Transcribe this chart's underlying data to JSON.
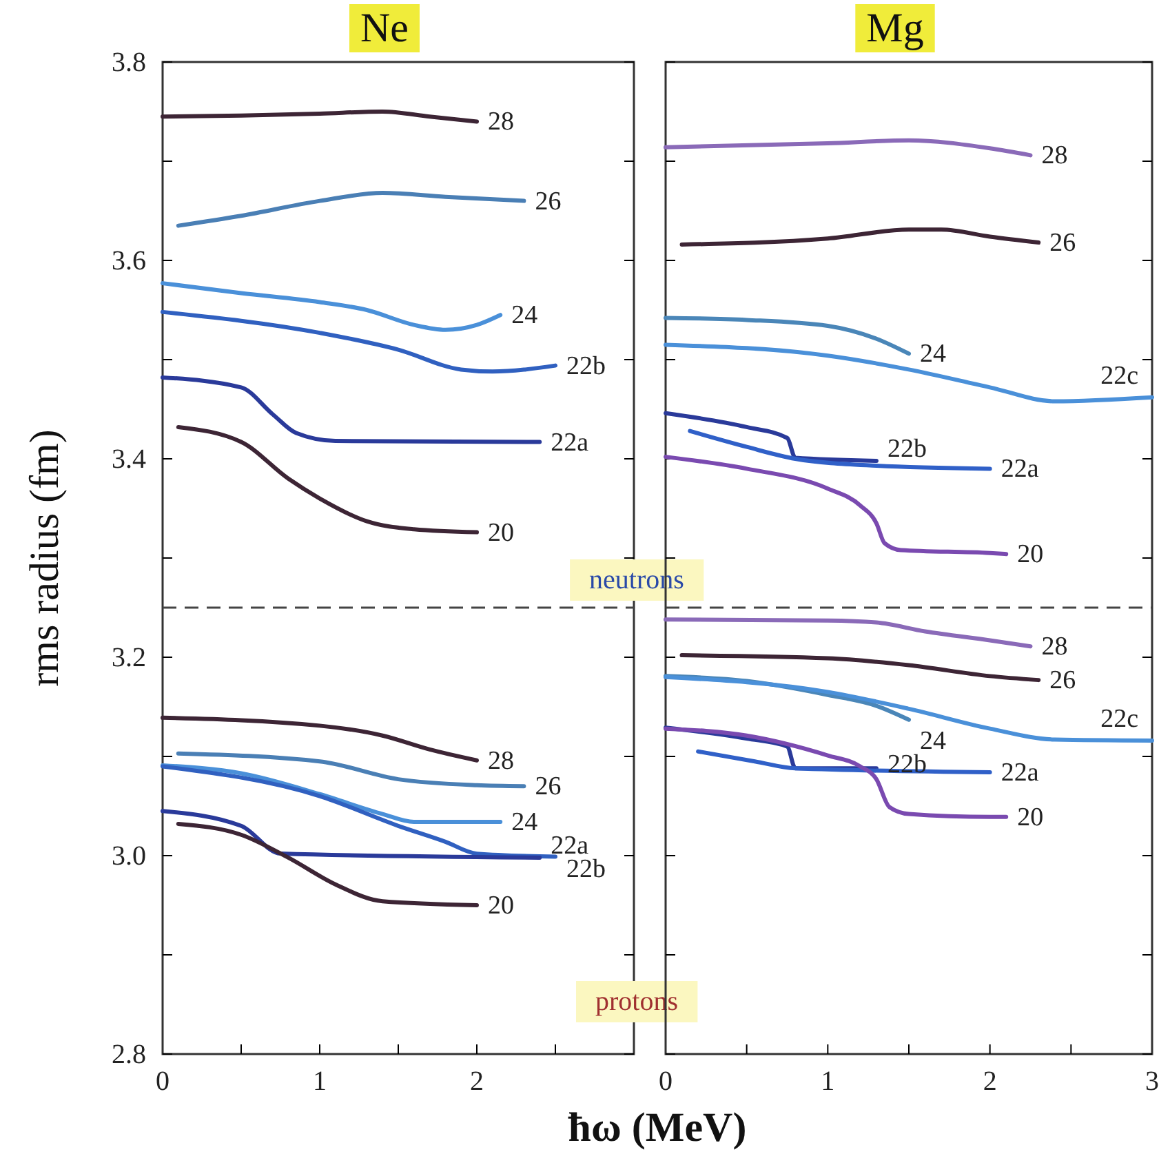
{
  "chart_data": [
    {
      "type": "line",
      "title": "Ne",
      "xlabel": "ħω  (MeV)",
      "ylabel": "rms radius  (fm)",
      "xlim": [
        0,
        3
      ],
      "ylim": [
        2.8,
        3.8
      ],
      "xticks": [
        0,
        {
          "value": 0.5,
          "label": null
        },
        1,
        {
          "value": 1.5,
          "label": null
        },
        2,
        {
          "value": 2.5,
          "label": null
        }
      ],
      "yticks": [
        2.8,
        {
          "value": 2.9,
          "label": null
        },
        {
          "value": 3.0,
          "label": "3.0"
        },
        {
          "value": 3.1,
          "label": null
        },
        3.2,
        {
          "value": 3.3,
          "label": null
        },
        3.4,
        {
          "value": 3.5,
          "label": null
        },
        3.6,
        {
          "value": 3.7,
          "label": null
        },
        3.8
      ],
      "ref_lines": [
        {
          "axis": "y",
          "value": 3.25,
          "line_style": "dashed",
          "color": "#444444"
        }
      ],
      "annotations": [
        "neutrons",
        "protons"
      ],
      "line_style": "solid",
      "grid": false,
      "series": [
        {
          "name": "28",
          "color": "#3d2535",
          "x": [
            0,
            0.5,
            1,
            1.4,
            1.7,
            2
          ],
          "values": [
            3.745,
            3.746,
            3.748,
            3.75,
            3.745,
            3.74
          ]
        },
        {
          "name": "26",
          "color": "#4a7fb5",
          "x": [
            0.1,
            0.5,
            1,
            1.4,
            1.8,
            2.3
          ],
          "values": [
            3.635,
            3.645,
            3.66,
            3.668,
            3.664,
            3.66
          ]
        },
        {
          "name": "24",
          "color": "#4a90d9",
          "x": [
            0,
            0.5,
            1,
            1.3,
            1.6,
            1.8,
            2.0,
            2.15
          ],
          "values": [
            3.577,
            3.567,
            3.558,
            3.55,
            3.535,
            3.53,
            3.535,
            3.545
          ]
        },
        {
          "name": "22b",
          "color": "#3060c0",
          "x": [
            0,
            1,
            1.5,
            1.9,
            2.1,
            2.5
          ],
          "values": [
            3.548,
            3.527,
            3.51,
            3.49,
            3.488,
            3.494
          ]
        },
        {
          "name": "22a",
          "color": "#2a3a9a",
          "x": [
            0,
            0.5,
            0.7,
            0.85,
            1.1,
            2.4
          ],
          "values": [
            3.482,
            3.472,
            3.445,
            3.426,
            3.418,
            3.417
          ]
        },
        {
          "name": "20",
          "color": "#3d2535",
          "x": [
            0.1,
            0.5,
            0.8,
            1.0,
            1.3,
            1.6,
            2.0
          ],
          "values": [
            3.432,
            3.417,
            3.38,
            3.36,
            3.337,
            3.329,
            3.326
          ]
        },
        {
          "name": "28",
          "color": "#3d2535",
          "x": [
            0,
            1,
            1.4,
            1.7,
            2.0
          ],
          "values": [
            3.139,
            3.131,
            3.121,
            3.107,
            3.096
          ]
        },
        {
          "name": "26",
          "color": "#4a7fb5",
          "x": [
            0.1,
            1,
            1.5,
            2.0,
            2.3
          ],
          "values": [
            3.103,
            3.095,
            3.077,
            3.071,
            3.07
          ]
        },
        {
          "name": "24",
          "color": "#4a90d9",
          "x": [
            0,
            0.5,
            1,
            1.4,
            1.6,
            2.15
          ],
          "values": [
            3.091,
            3.083,
            3.062,
            3.042,
            3.034,
            3.034
          ]
        },
        {
          "name": "22b",
          "color": "#3060c0",
          "x": [
            0,
            1,
            1.5,
            1.8,
            2.0,
            2.5
          ],
          "values": [
            3.09,
            3.06,
            3.03,
            3.014,
            3.002,
            2.999
          ]
        },
        {
          "name": "22a",
          "color": "#2a3a9a",
          "x": [
            0,
            0.5,
            0.75,
            2.4
          ],
          "values": [
            3.045,
            3.03,
            3.002,
            2.998
          ]
        },
        {
          "name": "20",
          "color": "#3d2535",
          "x": [
            0.1,
            0.5,
            0.8,
            1.1,
            1.4,
            2.0
          ],
          "values": [
            3.032,
            3.021,
            2.998,
            2.971,
            2.954,
            2.95
          ]
        }
      ]
    },
    {
      "type": "line",
      "title": "Mg",
      "xlim": [
        0,
        3
      ],
      "ylim": [
        2.8,
        3.8
      ],
      "tick_labels": "x",
      "xticks": [
        0,
        {
          "value": 0.5,
          "label": null
        },
        1,
        {
          "value": 1.5,
          "label": null
        },
        2,
        {
          "value": 2.5,
          "label": null
        },
        3
      ],
      "yticks": [
        {
          "value": 2.8,
          "label": null
        },
        {
          "value": 2.9,
          "label": null
        },
        {
          "value": 3.0,
          "label": null
        },
        {
          "value": 3.1,
          "label": null
        },
        {
          "value": 3.2,
          "label": null
        },
        {
          "value": 3.3,
          "label": null
        },
        {
          "value": 3.4,
          "label": null
        },
        {
          "value": 3.5,
          "label": null
        },
        {
          "value": 3.6,
          "label": null
        },
        {
          "value": 3.7,
          "label": null
        },
        {
          "value": 3.8,
          "label": null
        }
      ],
      "ref_lines": [
        {
          "axis": "y",
          "value": 3.25,
          "line_style": "dashed",
          "color": "#444444"
        }
      ],
      "line_style": "solid",
      "grid": false,
      "series": [
        {
          "name": "28",
          "color": "#8a6ab8",
          "x": [
            0,
            1,
            1.5,
            2.0,
            2.25
          ],
          "values": [
            3.714,
            3.718,
            3.721,
            3.713,
            3.706
          ]
        },
        {
          "name": "26",
          "color": "#3d2535",
          "x": [
            0.1,
            1,
            1.5,
            1.7,
            2.0,
            2.3
          ],
          "values": [
            3.616,
            3.622,
            3.631,
            3.631,
            3.624,
            3.618
          ]
        },
        {
          "name": "24",
          "color": "#4a86b8",
          "x": [
            0,
            0.5,
            1,
            1.3,
            1.5
          ],
          "values": [
            3.542,
            3.54,
            3.534,
            3.521,
            3.506
          ]
        },
        {
          "name": "22c",
          "color": "#4a90d9",
          "x": [
            0,
            1,
            1.5,
            2.0,
            2.4,
            3.0
          ],
          "values": [
            3.515,
            3.504,
            3.49,
            3.472,
            3.458,
            3.462
          ]
        },
        {
          "name": "22b",
          "color": "#2a3a9a",
          "x": [
            0,
            0.5,
            0.75,
            0.8,
            1.3
          ],
          "values": [
            3.446,
            3.432,
            3.421,
            3.401,
            3.398
          ]
        },
        {
          "name": "22a",
          "color": "#3060c8",
          "x": [
            0.15,
            0.5,
            0.8,
            1.3,
            2.0
          ],
          "values": [
            3.428,
            3.412,
            3.4,
            3.393,
            3.39
          ]
        },
        {
          "name": "20",
          "color": "#7a4ab0",
          "x": [
            0,
            0.5,
            1.0,
            1.2,
            1.3,
            1.35,
            1.45,
            2.0,
            2.1
          ],
          "values": [
            3.402,
            3.39,
            3.37,
            3.353,
            3.335,
            3.315,
            3.308,
            3.305,
            3.304
          ]
        },
        {
          "name": "28",
          "color": "#8a6ab8",
          "x": [
            0,
            1,
            1.3,
            1.6,
            2.0,
            2.25
          ],
          "values": [
            3.238,
            3.237,
            3.235,
            3.226,
            3.217,
            3.211
          ]
        },
        {
          "name": "26",
          "color": "#3d2535",
          "x": [
            0.1,
            1,
            1.5,
            2.0,
            2.3
          ],
          "values": [
            3.202,
            3.199,
            3.192,
            3.181,
            3.177
          ]
        },
        {
          "name": "24",
          "color": "#4a86b8",
          "x": [
            0,
            0.5,
            1,
            1.3,
            1.5
          ],
          "values": [
            3.181,
            3.176,
            3.162,
            3.151,
            3.137
          ]
        },
        {
          "name": "22c",
          "color": "#4a90d9",
          "x": [
            0,
            1,
            1.5,
            2.0,
            2.4,
            3.0
          ],
          "values": [
            3.18,
            3.165,
            3.148,
            3.128,
            3.117,
            3.116
          ]
        },
        {
          "name": "22b",
          "color": "#2a3a9a",
          "x": [
            0,
            0.5,
            0.75,
            0.8,
            1.3
          ],
          "values": [
            3.129,
            3.118,
            3.11,
            3.088,
            3.088
          ]
        },
        {
          "name": "22a",
          "color": "#3060c8",
          "x": [
            0.2,
            0.55,
            0.8,
            2.0
          ],
          "values": [
            3.105,
            3.095,
            3.088,
            3.084
          ]
        },
        {
          "name": "20",
          "color": "#7a4ab0",
          "x": [
            0,
            0.5,
            1.0,
            1.2,
            1.3,
            1.38,
            1.5,
            2.0,
            2.1
          ],
          "values": [
            3.128,
            3.121,
            3.101,
            3.09,
            3.077,
            3.049,
            3.042,
            3.039,
            3.039
          ]
        }
      ]
    }
  ]
}
